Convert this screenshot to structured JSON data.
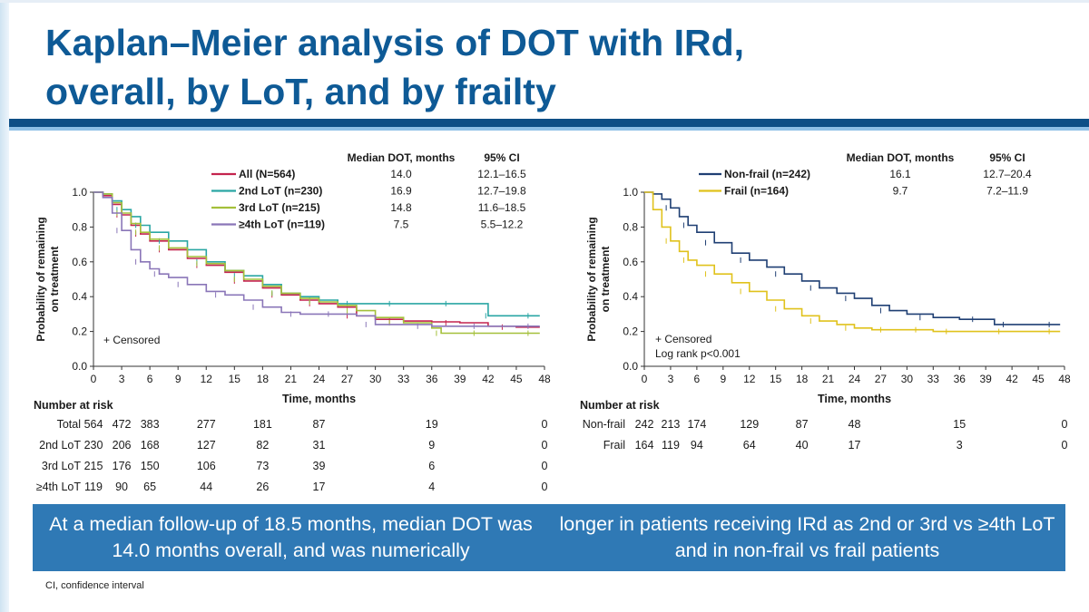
{
  "slide": {
    "title_line1": "Kaplan–Meier analysis of DOT with IRd,",
    "title_line2": "overall, by LoT, and by frailty",
    "banner_line1": "At a median follow-up of 18.5 months, median DOT was 14.0 months overall, and was numerically",
    "banner_line2": "longer in patients receiving IRd as 2nd or 3rd vs ≥4th LoT and in non-frail vs frail patients",
    "footnote": "CI, confidence interval"
  },
  "colors": {
    "title": "#0e5a96",
    "banner": "#2f79b5",
    "all": "#c4244e",
    "lot2": "#2aa6a4",
    "lot3": "#a4c03a",
    "lot4": "#8a76b8",
    "nonfrail": "#1f3f73",
    "frail": "#e0c21c"
  },
  "chart_data": [
    {
      "type": "line",
      "subtype": "kaplan-meier",
      "ylabel": "Probability of remaining on treatment",
      "xlabel": "Time, months",
      "xlim": [
        0,
        48
      ],
      "ylim": [
        0,
        1
      ],
      "xticks": [
        0,
        3,
        6,
        9,
        12,
        15,
        18,
        21,
        24,
        27,
        30,
        33,
        36,
        39,
        42,
        45,
        48
      ],
      "yticks": [
        "0.0",
        "0.2",
        "0.4",
        "0.6",
        "0.8",
        "1.0"
      ],
      "censored_label": "+ Censored",
      "table_headers": [
        "Median DOT, months",
        "95% CI"
      ],
      "series": [
        {
          "name": "All (N=564)",
          "color_key": "all",
          "median": "14.0",
          "ci": "12.1–16.5",
          "x": [
            0,
            1,
            2,
            3,
            4,
            5,
            6,
            8,
            10,
            12,
            14,
            16,
            18,
            20,
            22,
            24,
            26,
            28,
            30,
            33,
            36,
            39,
            42,
            45,
            47.5
          ],
          "y": [
            1.0,
            0.98,
            0.93,
            0.87,
            0.81,
            0.76,
            0.72,
            0.67,
            0.62,
            0.58,
            0.54,
            0.49,
            0.45,
            0.41,
            0.38,
            0.36,
            0.34,
            0.29,
            0.27,
            0.26,
            0.255,
            0.25,
            0.23,
            0.225,
            0.225
          ]
        },
        {
          "name": "2nd LoT (n=230)",
          "color_key": "lot2",
          "median": "16.9",
          "ci": "12.7–19.8",
          "x": [
            0,
            1,
            2,
            3,
            4,
            5,
            6,
            8,
            10,
            12,
            14,
            16,
            18,
            20,
            22,
            24,
            26,
            28,
            30,
            33,
            36,
            39,
            41.5,
            42,
            45,
            47.5
          ],
          "y": [
            1.0,
            0.99,
            0.95,
            0.9,
            0.86,
            0.81,
            0.77,
            0.72,
            0.67,
            0.6,
            0.55,
            0.52,
            0.47,
            0.42,
            0.4,
            0.38,
            0.36,
            0.36,
            0.36,
            0.36,
            0.36,
            0.36,
            0.36,
            0.29,
            0.29,
            0.29
          ]
        },
        {
          "name": "3rd LoT (n=215)",
          "color_key": "lot3",
          "median": "14.8",
          "ci": "11.6–18.5",
          "x": [
            0,
            1,
            2,
            3,
            4,
            5,
            6,
            8,
            10,
            12,
            14,
            16,
            18,
            20,
            22,
            24,
            26,
            28,
            30,
            33,
            36,
            37,
            39,
            42,
            45,
            47.5
          ],
          "y": [
            1.0,
            0.99,
            0.94,
            0.88,
            0.82,
            0.77,
            0.73,
            0.68,
            0.63,
            0.59,
            0.55,
            0.5,
            0.46,
            0.42,
            0.39,
            0.37,
            0.35,
            0.32,
            0.28,
            0.25,
            0.22,
            0.19,
            0.19,
            0.19,
            0.19,
            0.19
          ]
        },
        {
          "name": "≥4th LoT (n=119)",
          "color_key": "lot4",
          "median": "7.5",
          "ci": "5.5–12.2",
          "x": [
            0,
            1,
            2,
            3,
            4,
            5,
            6,
            7,
            8,
            10,
            12,
            14,
            16,
            18,
            20,
            22,
            24,
            26,
            28,
            30,
            33,
            36,
            39,
            42,
            45,
            47.5
          ],
          "y": [
            1.0,
            0.97,
            0.88,
            0.78,
            0.67,
            0.6,
            0.56,
            0.53,
            0.51,
            0.47,
            0.43,
            0.41,
            0.38,
            0.34,
            0.31,
            0.3,
            0.3,
            0.3,
            0.29,
            0.24,
            0.24,
            0.23,
            0.23,
            0.23,
            0.23,
            0.23
          ]
        }
      ],
      "risk_table": {
        "label": "Number at risk",
        "times": [
          0,
          3,
          6,
          12,
          18,
          24,
          36,
          48
        ],
        "rows": [
          {
            "label": "Total",
            "values": [
              "564",
              "472",
              "383",
              "277",
              "181",
              "87",
              "19",
              "0"
            ]
          },
          {
            "label": "2nd LoT",
            "values": [
              "230",
              "206",
              "168",
              "127",
              "82",
              "31",
              "9",
              "0"
            ]
          },
          {
            "label": "3rd LoT",
            "values": [
              "215",
              "176",
              "150",
              "106",
              "73",
              "39",
              "6",
              "0"
            ]
          },
          {
            "label": "≥4th LoT",
            "values": [
              "119",
              "90",
              "65",
              "44",
              "26",
              "17",
              "4",
              "0"
            ]
          }
        ]
      }
    },
    {
      "type": "line",
      "subtype": "kaplan-meier",
      "ylabel": "Probability of remaining on treatment",
      "xlabel": "Time, months",
      "xlim": [
        0,
        48
      ],
      "ylim": [
        0,
        1
      ],
      "xticks": [
        0,
        3,
        6,
        9,
        12,
        15,
        18,
        21,
        24,
        27,
        30,
        33,
        36,
        39,
        42,
        45,
        48
      ],
      "yticks": [
        "0.0",
        "0.2",
        "0.4",
        "0.6",
        "0.8",
        "1.0"
      ],
      "censored_label": "+ Censored",
      "annotation": "Log rank p<0.001",
      "table_headers": [
        "Median DOT, months",
        "95% CI"
      ],
      "series": [
        {
          "name": "Non-frail (n=242)",
          "color_key": "nonfrail",
          "median": "16.1",
          "ci": "12.7–20.4",
          "x": [
            0,
            1,
            2,
            3,
            4,
            5,
            6,
            8,
            10,
            12,
            14,
            16,
            18,
            20,
            22,
            24,
            26,
            28,
            30,
            33,
            36,
            39,
            40,
            42,
            45,
            47.5
          ],
          "y": [
            1.0,
            0.99,
            0.96,
            0.91,
            0.86,
            0.81,
            0.77,
            0.71,
            0.65,
            0.61,
            0.57,
            0.53,
            0.49,
            0.45,
            0.42,
            0.39,
            0.35,
            0.32,
            0.3,
            0.28,
            0.27,
            0.27,
            0.24,
            0.24,
            0.24,
            0.24
          ]
        },
        {
          "name": "Frail (n=164)",
          "color_key": "frail",
          "median": "9.7",
          "ci": "7.2–11.9",
          "x": [
            0,
            1,
            2,
            3,
            4,
            5,
            6,
            8,
            10,
            12,
            14,
            16,
            18,
            20,
            22,
            24,
            26,
            28,
            30,
            32,
            33,
            36,
            39,
            42,
            45,
            47.5
          ],
          "y": [
            1.0,
            0.9,
            0.8,
            0.72,
            0.66,
            0.61,
            0.58,
            0.53,
            0.48,
            0.43,
            0.38,
            0.33,
            0.29,
            0.26,
            0.24,
            0.22,
            0.21,
            0.21,
            0.21,
            0.21,
            0.2,
            0.2,
            0.2,
            0.2,
            0.2,
            0.2
          ]
        }
      ],
      "risk_table": {
        "label": "Number at risk",
        "times": [
          0,
          3,
          6,
          12,
          18,
          24,
          36,
          48
        ],
        "rows": [
          {
            "label": "Non-frail",
            "values": [
              "242",
              "213",
              "174",
              "129",
              "87",
              "48",
              "15",
              "0"
            ]
          },
          {
            "label": "Frail",
            "values": [
              "164",
              "119",
              "94",
              "64",
              "40",
              "17",
              "3",
              "0"
            ]
          }
        ]
      }
    }
  ]
}
